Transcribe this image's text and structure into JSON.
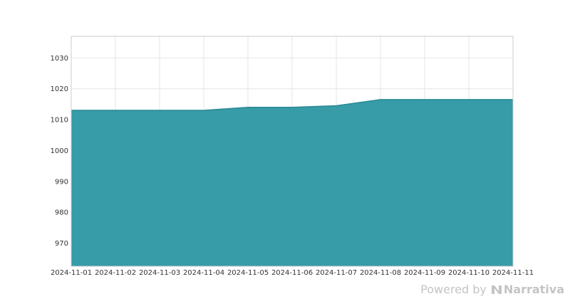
{
  "chart_data": {
    "type": "area",
    "title": "",
    "xlabel": "",
    "ylabel": "",
    "x": [
      "2024-11-01",
      "2024-11-02",
      "2024-11-03",
      "2024-11-04",
      "2024-11-05",
      "2024-11-06",
      "2024-11-07",
      "2024-11-08",
      "2024-11-09",
      "2024-11-10",
      "2024-11-11"
    ],
    "x_tick_labels": [
      "2024-11-01",
      "2024-11-02",
      "2024-11-03",
      "2024-11-04",
      "2024-11-05",
      "2024-11-06",
      "2024-11-07",
      "2024-11-08",
      "2024-11-09",
      "2024-11-10",
      "2024-11-11"
    ],
    "series": [
      {
        "values": [
          1013,
          1013,
          1013,
          1013,
          1014,
          1014,
          1014.5,
          1016.5,
          1016.5,
          1016.5,
          1016.5
        ]
      }
    ],
    "ylim": [
      962.5,
      1037
    ],
    "y_ticks": [
      970,
      980,
      990,
      1000,
      1010,
      1020,
      1030
    ],
    "grid": true,
    "legend": "none",
    "colors": {
      "area_fill": "#3399a6",
      "line": "#2a8a93",
      "grid": "#e6e6e6",
      "frame": "#cccccc"
    }
  },
  "footer": {
    "powered_by": "Powered by",
    "brand": "Narrativa"
  }
}
